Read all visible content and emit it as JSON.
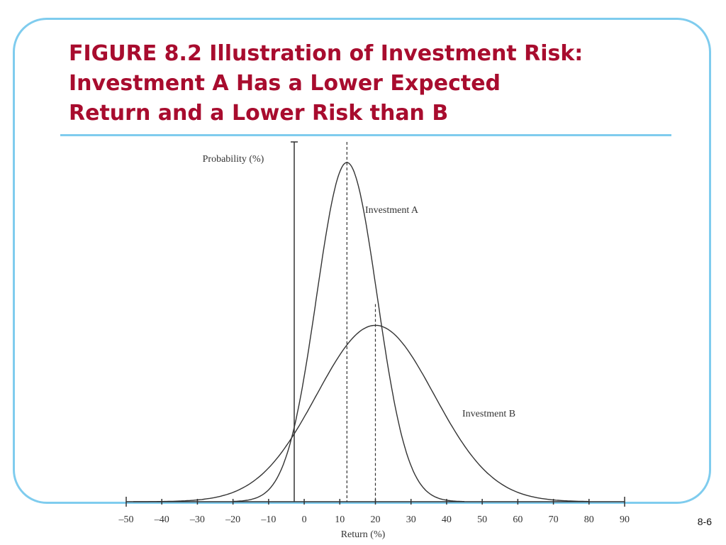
{
  "slide": {
    "title_lines": [
      "FIGURE 8.2 Illustration of Investment Risk:",
      "Investment A Has a Lower Expected",
      "Return and a Lower Risk than B"
    ],
    "page_number": "8-6",
    "colors": {
      "title": "#a80c2e",
      "frame": "#7fccee",
      "curve": "#333333"
    }
  },
  "chart_data": {
    "type": "line",
    "title": "",
    "xlabel": "Return (%)",
    "ylabel": "Probability (%)",
    "xlim": [
      -50,
      90
    ],
    "x_ticks": [
      -50,
      -40,
      -30,
      -20,
      -10,
      0,
      10,
      20,
      30,
      40,
      50,
      60,
      70,
      80,
      90
    ],
    "x_tick_labels": [
      "–50",
      "–40",
      "–30",
      "–20",
      "–10",
      "0",
      "10",
      "20",
      "30",
      "40",
      "50",
      "60",
      "70",
      "80",
      "90"
    ],
    "grid": false,
    "series": [
      {
        "name": "Investment A",
        "mean": 12,
        "std": 8.5,
        "x_range": [
          -20,
          45
        ],
        "peak": 1.0,
        "mean_marker": true
      },
      {
        "name": "Investment B",
        "mean": 20,
        "std": 16.5,
        "x_range": [
          -48,
          80
        ],
        "peak": 0.52,
        "mean_marker": true
      }
    ]
  }
}
